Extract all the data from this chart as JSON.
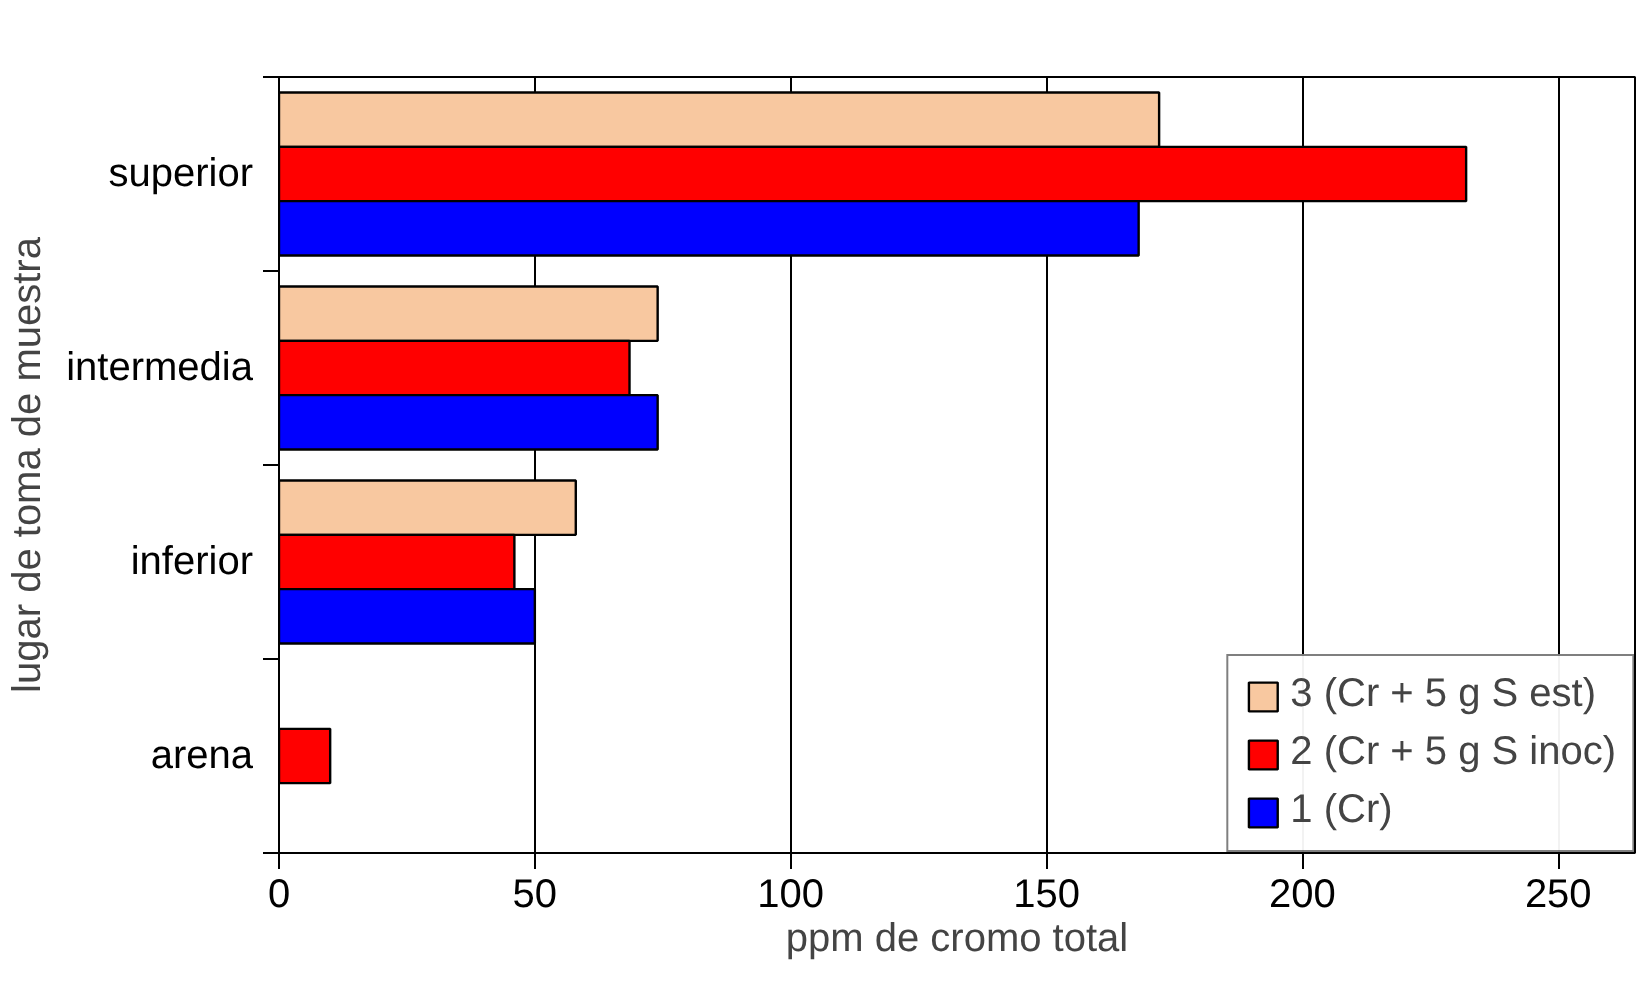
{
  "chart_data": {
    "type": "bar",
    "orientation": "horizontal",
    "xlabel": "ppm de cromo total",
    "ylabel": "lugar de toma de muestra",
    "categories": [
      "superior",
      "intermedia",
      "inferior",
      "arena"
    ],
    "series": [
      {
        "name": "3 (Cr + 5 g S est)",
        "color": "#f8c8a0",
        "values": [
          172,
          74,
          58,
          null
        ]
      },
      {
        "name": "2 (Cr + 5 g S inoc)",
        "color": "#ff0000",
        "values": [
          232,
          68.5,
          46,
          10
        ]
      },
      {
        "name": "1 (Cr)",
        "color": "#0000ff",
        "values": [
          168,
          74,
          50,
          null
        ]
      }
    ],
    "xlim": [
      0,
      265
    ],
    "xticks": [
      0,
      50,
      100,
      150,
      200,
      250
    ],
    "grid": "x",
    "legend": "bottom right"
  }
}
